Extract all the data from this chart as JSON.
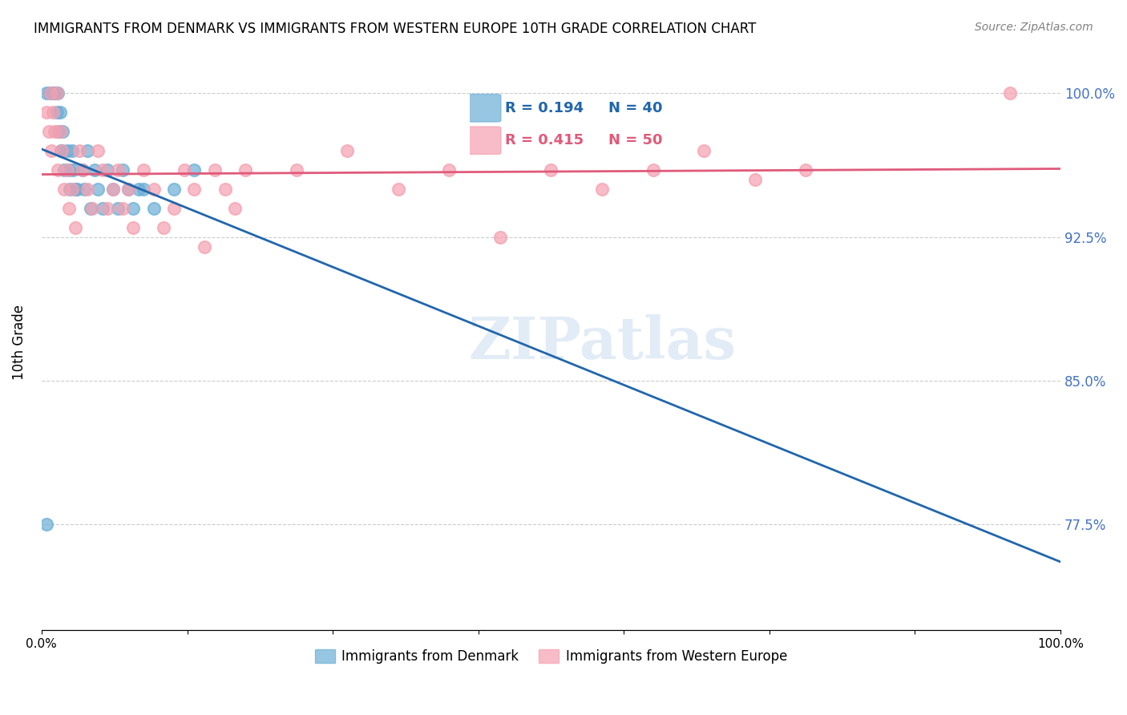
{
  "title": "IMMIGRANTS FROM DENMARK VS IMMIGRANTS FROM WESTERN EUROPE 10TH GRADE CORRELATION CHART",
  "source": "Source: ZipAtlas.com",
  "xlabel": "",
  "ylabel": "10th Grade",
  "xlim": [
    0.0,
    1.0
  ],
  "ylim": [
    0.72,
    1.02
  ],
  "yticks": [
    0.775,
    0.85,
    0.925,
    1.0
  ],
  "ytick_labels": [
    "77.5%",
    "85.0%",
    "92.5%",
    "100.0%"
  ],
  "xticks": [
    0.0,
    0.143,
    0.286,
    0.429,
    0.571,
    0.714,
    0.857,
    1.0
  ],
  "xtick_labels": [
    "0.0%",
    "",
    "",
    "",
    "",
    "",
    "",
    "100.0%"
  ],
  "blue_color": "#6baed6",
  "pink_color": "#f4a0b0",
  "blue_line_color": "#2166ac",
  "pink_line_color": "#e05a7a",
  "legend_R_blue": "R = 0.194",
  "legend_N_blue": "N = 40",
  "legend_R_pink": "R = 0.415",
  "legend_N_pink": "N = 50",
  "blue_R": 0.194,
  "pink_R": 0.415,
  "blue_N": 40,
  "pink_N": 50,
  "blue_scatter_x": [
    0.005,
    0.008,
    0.01,
    0.012,
    0.013,
    0.015,
    0.015,
    0.016,
    0.017,
    0.018,
    0.019,
    0.02,
    0.021,
    0.022,
    0.025,
    0.027,
    0.028,
    0.03,
    0.031,
    0.033,
    0.035,
    0.04,
    0.042,
    0.045,
    0.048,
    0.052,
    0.055,
    0.06,
    0.065,
    0.07,
    0.075,
    0.08,
    0.085,
    0.09,
    0.095,
    0.1,
    0.11,
    0.13,
    0.15,
    0.005
  ],
  "blue_scatter_y": [
    1.0,
    1.0,
    1.0,
    1.0,
    1.0,
    1.0,
    0.99,
    1.0,
    0.98,
    0.99,
    0.97,
    0.97,
    0.98,
    0.96,
    0.97,
    0.96,
    0.95,
    0.97,
    0.96,
    0.95,
    0.95,
    0.96,
    0.95,
    0.97,
    0.94,
    0.96,
    0.95,
    0.94,
    0.96,
    0.95,
    0.94,
    0.96,
    0.95,
    0.94,
    0.95,
    0.95,
    0.94,
    0.95,
    0.96,
    0.775
  ],
  "pink_scatter_x": [
    0.005,
    0.007,
    0.009,
    0.01,
    0.011,
    0.013,
    0.015,
    0.016,
    0.018,
    0.02,
    0.022,
    0.025,
    0.027,
    0.03,
    0.033,
    0.037,
    0.04,
    0.045,
    0.05,
    0.055,
    0.06,
    0.065,
    0.07,
    0.075,
    0.08,
    0.085,
    0.09,
    0.1,
    0.11,
    0.12,
    0.13,
    0.14,
    0.15,
    0.16,
    0.17,
    0.18,
    0.19,
    0.2,
    0.25,
    0.3,
    0.35,
    0.4,
    0.45,
    0.5,
    0.55,
    0.6,
    0.65,
    0.7,
    0.75,
    0.95
  ],
  "pink_scatter_y": [
    0.99,
    0.98,
    1.0,
    0.97,
    0.99,
    0.98,
    1.0,
    0.96,
    0.98,
    0.97,
    0.95,
    0.96,
    0.94,
    0.95,
    0.93,
    0.97,
    0.96,
    0.95,
    0.94,
    0.97,
    0.96,
    0.94,
    0.95,
    0.96,
    0.94,
    0.95,
    0.93,
    0.96,
    0.95,
    0.93,
    0.94,
    0.96,
    0.95,
    0.92,
    0.96,
    0.95,
    0.94,
    0.96,
    0.96,
    0.97,
    0.95,
    0.96,
    0.925,
    0.96,
    0.95,
    0.96,
    0.97,
    0.955,
    0.96,
    1.0
  ],
  "watermark_text": "ZIPatlas",
  "background_color": "#ffffff",
  "grid_color": "#cccccc",
  "right_tick_color": "#4472c4"
}
